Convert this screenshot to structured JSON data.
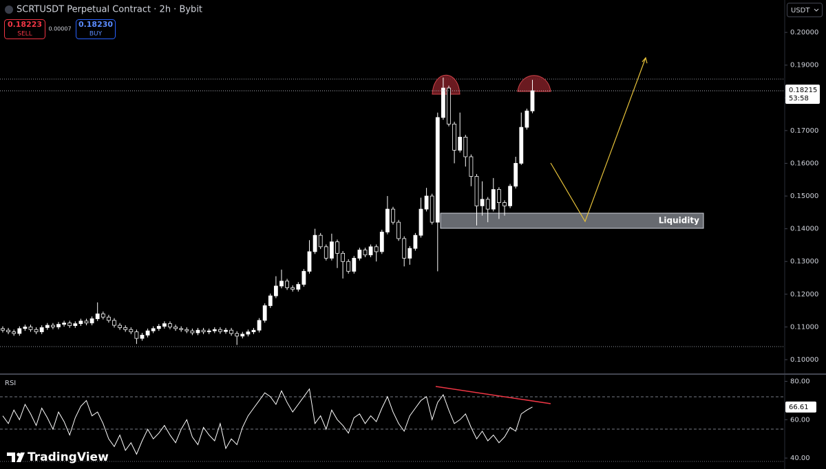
{
  "chart_data": [
    {
      "type": "candlestick",
      "title": "SCRTUSDT Perpetual Contract · 2h · Bybit",
      "sell_price": "0.18223",
      "sell_label": "SELL",
      "spread": "0.00007",
      "buy_price": "0.18230",
      "buy_label": "BUY",
      "currency": "USDT",
      "annotation": "Liquidity",
      "countdown": "53:58",
      "watermark": "TradingView",
      "last_price": {
        "value": 0.18215,
        "label": "0.18215"
      },
      "color": "#ffffff",
      "ylim": [
        0.0958,
        0.2099
      ],
      "yticks": [
        {
          "value": 0.1,
          "label": "0.10000"
        },
        {
          "value": 0.11,
          "label": "0.11000"
        },
        {
          "value": 0.12,
          "label": "0.12000"
        },
        {
          "value": 0.13,
          "label": "0.13000"
        },
        {
          "value": 0.14,
          "label": "0.14000"
        },
        {
          "value": 0.15,
          "label": "0.15000"
        },
        {
          "value": 0.16,
          "label": "0.16000"
        },
        {
          "value": 0.17,
          "label": "0.17000"
        },
        {
          "value": 0.18,
          "label": "0.18000"
        },
        {
          "value": 0.19,
          "label": "0.19000"
        },
        {
          "value": 0.2,
          "label": "0.20000"
        }
      ],
      "open": [
        0.1095,
        0.109,
        0.1085,
        0.108,
        0.1095,
        0.11,
        0.1092,
        0.1085,
        0.1098,
        0.1105,
        0.11,
        0.1108,
        0.1112,
        0.1104,
        0.111,
        0.1118,
        0.1112,
        0.1125,
        0.114,
        0.113,
        0.112,
        0.1105,
        0.1098,
        0.1092,
        0.1085,
        0.1065,
        0.1075,
        0.1088,
        0.1095,
        0.1102,
        0.111,
        0.11,
        0.1095,
        0.1092,
        0.1088,
        0.1082,
        0.109,
        0.1085,
        0.1088,
        0.1092,
        0.1086,
        0.109,
        0.108,
        0.1072,
        0.1078,
        0.1085,
        0.109,
        0.112,
        0.1165,
        0.1195,
        0.1225,
        0.124,
        0.122,
        0.1215,
        0.123,
        0.127,
        0.133,
        0.138,
        0.1345,
        0.131,
        0.136,
        0.1325,
        0.13,
        0.127,
        0.131,
        0.1335,
        0.132,
        0.1345,
        0.133,
        0.139,
        0.146,
        0.142,
        0.137,
        0.131,
        0.134,
        0.138,
        0.146,
        0.15,
        0.142,
        0.174,
        0.183,
        0.172,
        0.164,
        0.168,
        0.162,
        0.156,
        0.147,
        0.149,
        0.146,
        0.152,
        0.148,
        0.147,
        0.153,
        0.16,
        0.171,
        0.176
      ],
      "high": [
        0.1102,
        0.1097,
        0.1092,
        0.1102,
        0.1107,
        0.1107,
        0.1099,
        0.1105,
        0.1112,
        0.1112,
        0.1115,
        0.1119,
        0.1119,
        0.1117,
        0.1125,
        0.1125,
        0.1132,
        0.1175,
        0.1147,
        0.1137,
        0.1127,
        0.1112,
        0.1105,
        0.1099,
        0.1092,
        0.1082,
        0.1095,
        0.1102,
        0.1109,
        0.1117,
        0.1117,
        0.1107,
        0.1102,
        0.1099,
        0.1095,
        0.1097,
        0.1097,
        0.1095,
        0.1099,
        0.1099,
        0.1097,
        0.1097,
        0.1087,
        0.1085,
        0.1092,
        0.1097,
        0.1127,
        0.1172,
        0.1202,
        0.1255,
        0.1275,
        0.1247,
        0.1227,
        0.1237,
        0.1277,
        0.1365,
        0.14,
        0.1387,
        0.1352,
        0.1385,
        0.1367,
        0.1332,
        0.1307,
        0.1317,
        0.1342,
        0.1342,
        0.1352,
        0.1352,
        0.1397,
        0.15,
        0.1467,
        0.1427,
        0.1377,
        0.1347,
        0.1387,
        0.1495,
        0.1525,
        0.1507,
        0.1755,
        0.1862,
        0.1837,
        0.1727,
        0.1755,
        0.1687,
        0.1627,
        0.1567,
        0.1545,
        0.1497,
        0.1555,
        0.1527,
        0.1487,
        0.1537,
        0.162,
        0.1755,
        0.1767,
        0.1855
      ],
      "low": [
        0.1083,
        0.1078,
        0.1073,
        0.1073,
        0.1088,
        0.1085,
        0.1078,
        0.1078,
        0.1091,
        0.1093,
        0.1093,
        0.1101,
        0.1097,
        0.1097,
        0.1103,
        0.1105,
        0.1105,
        0.1118,
        0.1123,
        0.1113,
        0.1098,
        0.1091,
        0.1085,
        0.1078,
        0.1048,
        0.1058,
        0.1068,
        0.1081,
        0.1088,
        0.1095,
        0.1093,
        0.1088,
        0.1085,
        0.1081,
        0.1075,
        0.1075,
        0.1078,
        0.1078,
        0.1081,
        0.1079,
        0.1079,
        0.1073,
        0.1045,
        0.1065,
        0.1071,
        0.1078,
        0.1083,
        0.1113,
        0.1158,
        0.1188,
        0.1218,
        0.1213,
        0.1208,
        0.1208,
        0.1223,
        0.1263,
        0.1323,
        0.1338,
        0.1303,
        0.1303,
        0.128,
        0.1248,
        0.1263,
        0.1263,
        0.1303,
        0.1313,
        0.1313,
        0.13,
        0.1323,
        0.1383,
        0.1413,
        0.1363,
        0.1285,
        0.129,
        0.1333,
        0.1373,
        0.1453,
        0.1413,
        0.127,
        0.1733,
        0.1713,
        0.16,
        0.1633,
        0.159,
        0.153,
        0.141,
        0.144,
        0.142,
        0.1453,
        0.143,
        0.144,
        0.1463,
        0.1523,
        0.1595,
        0.1703,
        0.1753
      ],
      "close": [
        0.109,
        0.1085,
        0.108,
        0.1095,
        0.11,
        0.1092,
        0.1085,
        0.1098,
        0.1105,
        0.11,
        0.1108,
        0.1112,
        0.1104,
        0.111,
        0.1118,
        0.1112,
        0.1125,
        0.114,
        0.113,
        0.112,
        0.1105,
        0.1098,
        0.1092,
        0.1085,
        0.1065,
        0.1075,
        0.1088,
        0.1095,
        0.1102,
        0.111,
        0.11,
        0.1095,
        0.1092,
        0.1088,
        0.1082,
        0.109,
        0.1085,
        0.1088,
        0.1092,
        0.1086,
        0.109,
        0.108,
        0.1072,
        0.1078,
        0.1085,
        0.109,
        0.112,
        0.1165,
        0.1195,
        0.1225,
        0.124,
        0.122,
        0.1215,
        0.123,
        0.127,
        0.133,
        0.138,
        0.1345,
        0.131,
        0.136,
        0.1325,
        0.13,
        0.127,
        0.131,
        0.1335,
        0.132,
        0.1345,
        0.133,
        0.139,
        0.146,
        0.142,
        0.137,
        0.131,
        0.134,
        0.138,
        0.146,
        0.15,
        0.142,
        0.174,
        0.183,
        0.172,
        0.164,
        0.168,
        0.162,
        0.156,
        0.147,
        0.149,
        0.146,
        0.152,
        0.148,
        0.147,
        0.153,
        0.16,
        0.171,
        0.176,
        0.1822
      ]
    },
    {
      "type": "line",
      "title": "RSI",
      "color": "#ffffff",
      "last_value": {
        "value": 66.61,
        "label": "66.61"
      },
      "ylim": [
        34.3,
        83.4
      ],
      "yticks": [
        {
          "value": 80,
          "label": "80.00"
        },
        {
          "value": 60,
          "label": "60.00"
        },
        {
          "value": 40,
          "label": "40.00"
        }
      ],
      "values": [
        62,
        58,
        65,
        60,
        68,
        63,
        57,
        66,
        61,
        55,
        64,
        59,
        52,
        61,
        67,
        70,
        62,
        64,
        58,
        50,
        46,
        52,
        44,
        48,
        42,
        49,
        55,
        50,
        53,
        57,
        52,
        48,
        55,
        60,
        51,
        47,
        56,
        52,
        49,
        58,
        45,
        50,
        47,
        56,
        62,
        66,
        70,
        74,
        72,
        68,
        75,
        69,
        64,
        68,
        72,
        76,
        58,
        62,
        55,
        65,
        60,
        57,
        53,
        61,
        63,
        58,
        62,
        59,
        66,
        72,
        64,
        58,
        54,
        62,
        66,
        70,
        72,
        60,
        69,
        73,
        65,
        58,
        60,
        63,
        56,
        50,
        54,
        49,
        52,
        48,
        51,
        56,
        54,
        63,
        65,
        66.61
      ]
    }
  ]
}
